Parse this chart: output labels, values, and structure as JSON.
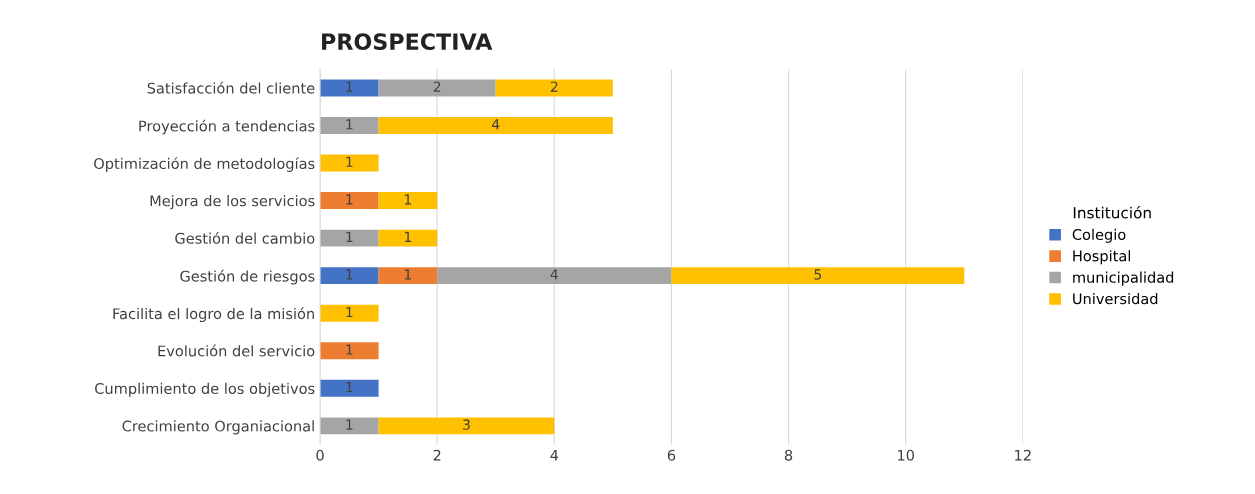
{
  "chart_data": {
    "type": "bar",
    "orientation": "horizontal",
    "stacked": true,
    "title": "PROSPECTIVA",
    "categories": [
      "Satisfacción del cliente",
      "Proyección a tendencias",
      "Optimización de metodologías",
      "Mejora de los servicios",
      "Gestión del cambio",
      "Gestión de riesgos",
      "Facilita el logro de la misión",
      "Evolución del servicio",
      "Cumplimiento de los objetivos",
      "Crecimiento Organiacional"
    ],
    "series": [
      {
        "name": "Colegio",
        "color": "#4472c4",
        "values": [
          1,
          null,
          null,
          null,
          null,
          1,
          null,
          null,
          1,
          null
        ]
      },
      {
        "name": "Hospital",
        "color": "#ed7d31",
        "values": [
          null,
          null,
          null,
          1,
          null,
          1,
          null,
          1,
          null,
          null
        ]
      },
      {
        "name": "municipalidad",
        "color": "#a5a5a5",
        "values": [
          2,
          1,
          null,
          null,
          1,
          4,
          null,
          null,
          null,
          1
        ]
      },
      {
        "name": "Universidad",
        "color": "#ffc000",
        "values": [
          2,
          4,
          1,
          1,
          1,
          5,
          1,
          null,
          null,
          3
        ]
      }
    ],
    "xlim": [
      0,
      12
    ],
    "xticks": [
      0,
      2,
      4,
      6,
      8,
      10,
      12
    ],
    "grid": "x",
    "legend": "right",
    "legend_title": "Institución",
    "data_labels": true
  }
}
